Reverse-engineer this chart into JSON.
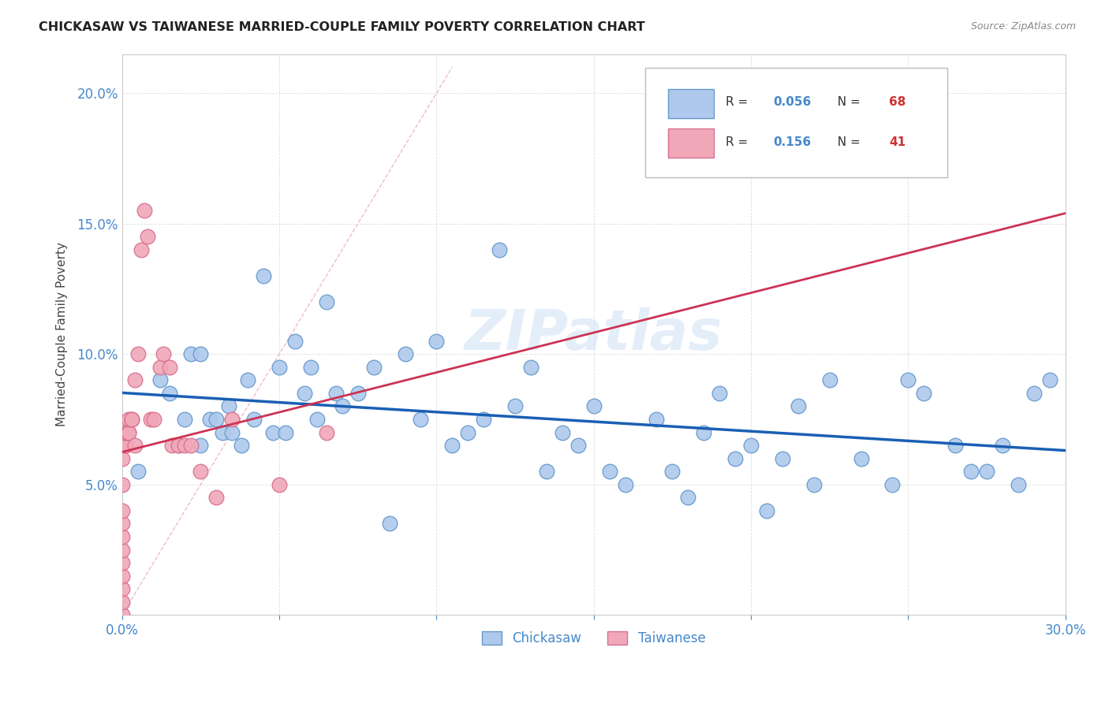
{
  "title": "CHICKASAW VS TAIWANESE MARRIED-COUPLE FAMILY POVERTY CORRELATION CHART",
  "source": "Source: ZipAtlas.com",
  "ylabel": "Married-Couple Family Poverty",
  "xlim": [
    0.0,
    0.3
  ],
  "ylim": [
    0.0,
    0.215
  ],
  "legend1_r": "0.056",
  "legend1_n": "68",
  "legend2_r": "0.156",
  "legend2_n": "41",
  "chickasaw_color": "#aec9ed",
  "chickasaw_edge": "#6699cc",
  "taiwanese_color": "#f0a8b8",
  "taiwanese_edge": "#d87090",
  "trend_blue": "#1a5fb4",
  "trend_pink": "#cc3355",
  "ref_line_color": "#e8a0b0",
  "watermark": "ZIPatlas",
  "tick_color": "#4488cc",
  "grid_color": "#dddddd",
  "chickasaw_x": [
    0.005,
    0.012,
    0.015,
    0.018,
    0.02,
    0.022,
    0.025,
    0.025,
    0.028,
    0.03,
    0.032,
    0.034,
    0.035,
    0.038,
    0.04,
    0.042,
    0.045,
    0.048,
    0.05,
    0.052,
    0.055,
    0.058,
    0.06,
    0.062,
    0.065,
    0.068,
    0.07,
    0.075,
    0.08,
    0.085,
    0.09,
    0.095,
    0.1,
    0.105,
    0.11,
    0.115,
    0.12,
    0.125,
    0.13,
    0.135,
    0.14,
    0.145,
    0.15,
    0.155,
    0.16,
    0.17,
    0.175,
    0.18,
    0.185,
    0.19,
    0.195,
    0.2,
    0.205,
    0.21,
    0.215,
    0.22,
    0.225,
    0.235,
    0.245,
    0.25,
    0.255,
    0.265,
    0.27,
    0.275,
    0.28,
    0.285,
    0.29,
    0.295
  ],
  "chickasaw_y": [
    0.055,
    0.09,
    0.085,
    0.065,
    0.075,
    0.1,
    0.1,
    0.065,
    0.075,
    0.075,
    0.07,
    0.08,
    0.07,
    0.065,
    0.09,
    0.075,
    0.13,
    0.07,
    0.095,
    0.07,
    0.105,
    0.085,
    0.095,
    0.075,
    0.12,
    0.085,
    0.08,
    0.085,
    0.095,
    0.035,
    0.1,
    0.075,
    0.105,
    0.065,
    0.07,
    0.075,
    0.14,
    0.08,
    0.095,
    0.055,
    0.07,
    0.065,
    0.08,
    0.055,
    0.05,
    0.075,
    0.055,
    0.045,
    0.07,
    0.085,
    0.06,
    0.065,
    0.04,
    0.06,
    0.08,
    0.05,
    0.09,
    0.06,
    0.05,
    0.09,
    0.085,
    0.065,
    0.055,
    0.055,
    0.065,
    0.05,
    0.085,
    0.09
  ],
  "taiwanese_x": [
    0.0,
    0.0,
    0.0,
    0.0,
    0.0,
    0.0,
    0.0,
    0.0,
    0.0,
    0.0,
    0.0,
    0.001,
    0.001,
    0.001,
    0.001,
    0.001,
    0.002,
    0.002,
    0.002,
    0.003,
    0.003,
    0.004,
    0.004,
    0.005,
    0.006,
    0.007,
    0.008,
    0.009,
    0.01,
    0.012,
    0.013,
    0.015,
    0.016,
    0.018,
    0.02,
    0.022,
    0.025,
    0.03,
    0.035,
    0.05,
    0.065
  ],
  "taiwanese_y": [
    0.0,
    0.005,
    0.01,
    0.015,
    0.02,
    0.025,
    0.03,
    0.035,
    0.04,
    0.05,
    0.06,
    0.065,
    0.065,
    0.065,
    0.07,
    0.07,
    0.07,
    0.07,
    0.075,
    0.075,
    0.075,
    0.09,
    0.065,
    0.1,
    0.14,
    0.155,
    0.145,
    0.075,
    0.075,
    0.095,
    0.1,
    0.095,
    0.065,
    0.065,
    0.065,
    0.065,
    0.055,
    0.045,
    0.075,
    0.05,
    0.07
  ]
}
